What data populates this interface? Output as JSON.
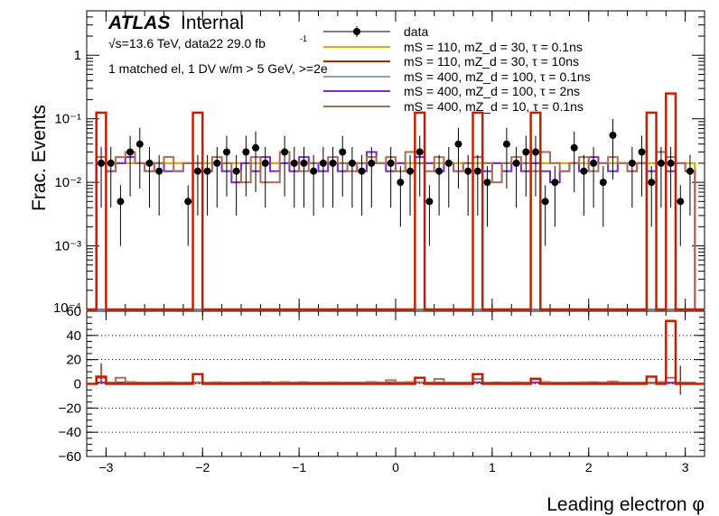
{
  "chart_data": {
    "type": "histogram",
    "experiment": "ATLAS",
    "experiment_label": "Internal",
    "energy_text": "√s=13.6 TeV, data22 29.0 fb",
    "lumi_superscript": "-1",
    "selection_text": "1 matched el, 1 DV w/m > 5 GeV, >=2e",
    "xlabel": "Leading electron φ",
    "ylabel_top": "Frac. Events",
    "xlim": [
      -3.2,
      3.2
    ],
    "ylim_top": [
      0.0001,
      5
    ],
    "yscale_top": "log",
    "ylim_ratio": [
      -60,
      60
    ],
    "x_ticks": [
      "−3",
      "−2",
      "−1",
      "0",
      "1",
      "2",
      "3"
    ],
    "y_ticks_top": [
      "1",
      "10⁻¹",
      "10⁻²",
      "10⁻³"
    ],
    "y_ticks_top_bottom_partial": "10⁻⁴",
    "y_ticks_ratio": [
      "60",
      "40",
      "20",
      "0",
      "−20",
      "−40",
      "−60"
    ],
    "ratio_grid": true,
    "legend_position": "top-right",
    "bin_edges_note": "64 bins of width 0.1 from -3.2 to 3.2",
    "data": {
      "name": "data",
      "color": "#000000",
      "values": [
        0.0,
        0.02,
        0.02,
        0.005,
        0.03,
        0.04,
        0.02,
        0.015,
        0.0,
        0.0,
        0.005,
        0.015,
        0.015,
        0.02,
        0.03,
        0.015,
        0.03,
        0.035,
        0.02,
        0.0,
        0.03,
        0.02,
        0.02,
        0.015,
        0.02,
        0.02,
        0.03,
        0.02,
        0.015,
        0.02,
        0.0,
        0.02,
        0.01,
        0.015,
        0.03,
        0.005,
        0.015,
        0.02,
        0.04,
        0.015,
        0.015,
        0.01,
        0.0,
        0.04,
        0.02,
        0.03,
        0.03,
        0.005,
        0.01,
        0.0,
        0.035,
        0.015,
        0.02,
        0.01,
        0.055,
        0.0,
        0.02,
        0.03,
        0.01,
        0.02,
        0.02,
        0.005,
        0.015,
        0.0
      ]
    },
    "series": [
      {
        "name": "mS = 110, mZ_d = 30, τ = 0.1ns",
        "color": "#e5a800",
        "values": [
          0.0,
          0.02,
          0.02,
          0.02,
          0.02,
          0.02,
          0.02,
          0.02,
          0.02,
          0.02,
          0.02,
          0.02,
          0.02,
          0.02,
          0.02,
          0.02,
          0.02,
          0.02,
          0.02,
          0.02,
          0.02,
          0.02,
          0.02,
          0.02,
          0.02,
          0.02,
          0.02,
          0.02,
          0.02,
          0.02,
          0.02,
          0.02,
          0.02,
          0.02,
          0.02,
          0.02,
          0.02,
          0.02,
          0.02,
          0.02,
          0.02,
          0.02,
          0.02,
          0.02,
          0.02,
          0.02,
          0.02,
          0.02,
          0.02,
          0.02,
          0.02,
          0.02,
          0.02,
          0.02,
          0.02,
          0.02,
          0.02,
          0.02,
          0.02,
          0.02,
          0.02,
          0.02,
          0.02,
          0.0
        ]
      },
      {
        "name": "mS = 110, mZ_d = 30, τ = 10ns",
        "color": "#c81e00",
        "values": [
          0.0,
          0.125,
          0.0,
          0.0,
          0.0,
          0.0,
          0.0,
          0.0,
          0.0,
          0.0,
          0.0,
          0.125,
          0.0,
          0.0,
          0.0,
          0.0,
          0.0,
          0.0,
          0.0,
          0.0,
          0.0,
          0.0,
          0.0,
          0.0,
          0.0,
          0.0,
          0.0,
          0.0,
          0.0,
          0.0,
          0.0,
          0.0,
          0.0,
          0.0,
          0.125,
          0.0,
          0.0,
          0.0,
          0.0,
          0.0,
          0.125,
          0.0,
          0.0,
          0.0,
          0.0,
          0.0,
          0.125,
          0.0,
          0.0,
          0.0,
          0.0,
          0.0,
          0.0,
          0.0,
          0.0,
          0.0,
          0.0,
          0.0,
          0.125,
          0.0,
          0.25,
          0.0,
          0.0,
          0.0
        ]
      },
      {
        "name": "mS = 400, mZ_d = 100, τ = 0.1ns",
        "color": "#93a8ad",
        "values": [
          0.0,
          0.02,
          0.02,
          0.02,
          0.02,
          0.02,
          0.02,
          0.02,
          0.02,
          0.02,
          0.02,
          0.02,
          0.02,
          0.02,
          0.02,
          0.02,
          0.02,
          0.02,
          0.02,
          0.02,
          0.02,
          0.02,
          0.02,
          0.02,
          0.02,
          0.02,
          0.02,
          0.02,
          0.02,
          0.02,
          0.02,
          0.02,
          0.02,
          0.02,
          0.02,
          0.02,
          0.02,
          0.02,
          0.02,
          0.02,
          0.02,
          0.02,
          0.02,
          0.02,
          0.02,
          0.02,
          0.02,
          0.02,
          0.02,
          0.02,
          0.02,
          0.02,
          0.02,
          0.02,
          0.02,
          0.02,
          0.02,
          0.02,
          0.02,
          0.02,
          0.02,
          0.02,
          0.02,
          0.0
        ]
      },
      {
        "name": "mS = 400, mZ_d = 100, τ = 2ns",
        "color": "#7b2bc4",
        "values": [
          0.0,
          0.02,
          0.015,
          0.02,
          0.025,
          0.02,
          0.015,
          0.02,
          0.015,
          0.015,
          0.02,
          0.015,
          0.015,
          0.02,
          0.015,
          0.01,
          0.02,
          0.015,
          0.025,
          0.015,
          0.02,
          0.015,
          0.025,
          0.02,
          0.015,
          0.02,
          0.015,
          0.02,
          0.015,
          0.03,
          0.02,
          0.015,
          0.02,
          0.015,
          0.025,
          0.02,
          0.015,
          0.02,
          0.015,
          0.02,
          0.025,
          0.015,
          0.02,
          0.015,
          0.02,
          0.015,
          0.02,
          0.015,
          0.01,
          0.015,
          0.02,
          0.015,
          0.025,
          0.02,
          0.015,
          0.02,
          0.015,
          0.02,
          0.015,
          0.02,
          0.015,
          0.02,
          0.015,
          0.0
        ]
      },
      {
        "name": "mS = 400, mZ_d = 10, τ = 0.1ns",
        "color": "#a87058",
        "values": [
          0.0,
          0.025,
          0.015,
          0.025,
          0.03,
          0.02,
          0.015,
          0.02,
          0.025,
          0.015,
          0.02,
          0.02,
          0.015,
          0.025,
          0.02,
          0.015,
          0.01,
          0.025,
          0.01,
          0.01,
          0.03,
          0.02,
          0.015,
          0.02,
          0.02,
          0.025,
          0.02,
          0.015,
          0.02,
          0.025,
          0.02,
          0.025,
          0.015,
          0.03,
          0.02,
          0.015,
          0.025,
          0.02,
          0.015,
          0.02,
          0.025,
          0.02,
          0.01,
          0.02,
          0.025,
          0.02,
          0.015,
          0.03,
          0.02,
          0.015,
          0.02,
          0.025,
          0.015,
          0.02,
          0.025,
          0.02,
          0.015,
          0.02,
          0.01,
          0.03,
          0.025,
          0.02,
          0.015,
          0.0
        ]
      }
    ],
    "ratio": {
      "ylabel": "",
      "values_by_series": [
        [
          0,
          1,
          1,
          1,
          1,
          1,
          1,
          1,
          1,
          1,
          1,
          1,
          1,
          1,
          1,
          1,
          1,
          1,
          1,
          1,
          1,
          1,
          1,
          1,
          1,
          1,
          1,
          1,
          1,
          1,
          1,
          1,
          1,
          1,
          1,
          1,
          1,
          1,
          1,
          1,
          1,
          1,
          1,
          1,
          1,
          1,
          1,
          1,
          1,
          1,
          1,
          1,
          1,
          1,
          1,
          1,
          1,
          1,
          1,
          1,
          1,
          1,
          1,
          0
        ],
        [
          0,
          6,
          0,
          0,
          0,
          0,
          0,
          0,
          0,
          0,
          0,
          8,
          0,
          0,
          0,
          0,
          0,
          0,
          0,
          0,
          0,
          0,
          0,
          0,
          0,
          0,
          0,
          0,
          0,
          0,
          0,
          0,
          0,
          0,
          5,
          0,
          0,
          0,
          0,
          0,
          8,
          0,
          0,
          0,
          0,
          0,
          4,
          0,
          0,
          0,
          0,
          0,
          0,
          0,
          0,
          0,
          0,
          0,
          6,
          0,
          52,
          0,
          0,
          0
        ],
        [
          0,
          1,
          1,
          1,
          1,
          1,
          1,
          1,
          1,
          1,
          1,
          1,
          1,
          1,
          1,
          1,
          1,
          1,
          1,
          1,
          1,
          1,
          1,
          1,
          1,
          1,
          1,
          1,
          1,
          1,
          1,
          1,
          1,
          1,
          1,
          1,
          1,
          1,
          1,
          1,
          1,
          1,
          1,
          1,
          1,
          1,
          1,
          1,
          1,
          1,
          1,
          1,
          1,
          1,
          1,
          1,
          1,
          1,
          1,
          1,
          1,
          1,
          1,
          0
        ],
        [
          0,
          1,
          0.8,
          1,
          1.3,
          1,
          0.8,
          1,
          0.8,
          0.8,
          1,
          0.8,
          0.8,
          1,
          0.8,
          0.5,
          1,
          0.8,
          1.3,
          0.8,
          1,
          0.8,
          1.3,
          1,
          0.8,
          1,
          0.8,
          1,
          0.8,
          1.5,
          1,
          0.8,
          1,
          0.8,
          1.3,
          1,
          0.8,
          1,
          0.8,
          1,
          1.3,
          0.8,
          1,
          0.8,
          1,
          0.8,
          1,
          0.8,
          0.5,
          0.8,
          1,
          0.8,
          1.3,
          1,
          0.8,
          1,
          0.8,
          1,
          0.8,
          1,
          0.8,
          1,
          0.8,
          0
        ],
        [
          0,
          5,
          1,
          5,
          1.5,
          1,
          0.8,
          1,
          1.3,
          0.8,
          1,
          1,
          0.8,
          1.3,
          1,
          0.8,
          0.5,
          1.3,
          0.5,
          0.5,
          1.5,
          1,
          0.8,
          1,
          1,
          1.3,
          1,
          0.8,
          1,
          1.3,
          1,
          3,
          0.8,
          1.5,
          1,
          0.8,
          4,
          1,
          0.8,
          1,
          4,
          1,
          0.5,
          1,
          1.3,
          1,
          4.5,
          1.5,
          1,
          0.8,
          1,
          1.3,
          0.8,
          1,
          2,
          1,
          0.8,
          1,
          0.5,
          1.5,
          5,
          1,
          0.8,
          0
        ]
      ],
      "data_points": [
        {
          "x": -3.05,
          "y": 9,
          "err": 8
        },
        {
          "x": 2.95,
          "y": 3,
          "err": 12
        }
      ]
    }
  }
}
